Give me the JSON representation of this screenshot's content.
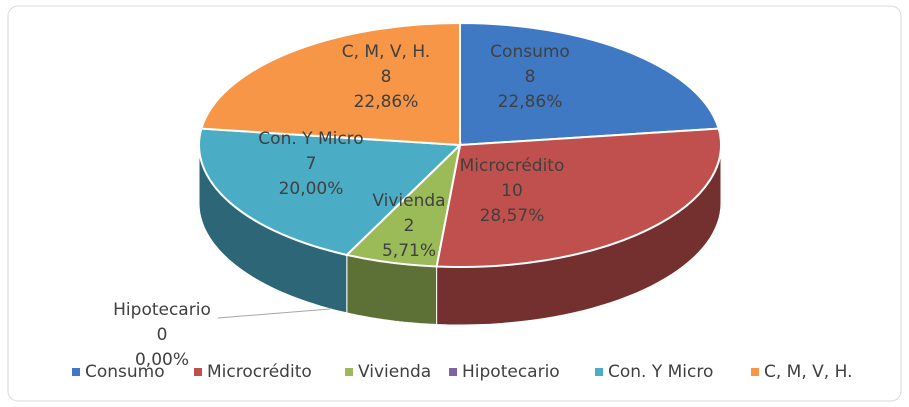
{
  "chart_data": {
    "type": "pie3d",
    "categories": [
      "Consumo",
      "Microcrédito",
      "Vivienda",
      "Hipotecario",
      "Con. Y Micro",
      "C, M, V, H."
    ],
    "values": [
      8,
      10,
      2,
      0,
      7,
      8
    ],
    "percentages": [
      22.86,
      28.57,
      5.71,
      0,
      20,
      22.86
    ],
    "percentage_labels": [
      "22,86%",
      "28,57%",
      "5,71%",
      "0,00%",
      "20,00%",
      "22,86%"
    ],
    "colors": [
      "#3f79c4",
      "#c0504d",
      "#9bbb59",
      "#8064a2",
      "#4bacc6",
      "#f79646"
    ],
    "legend": "bottom"
  }
}
